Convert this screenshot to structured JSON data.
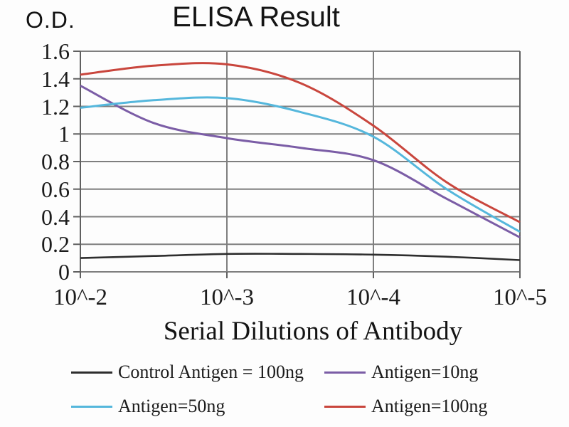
{
  "title": "ELISA Result",
  "y_axis_unit_label": "O.D.",
  "colors": {
    "grid": "#7f7f7f",
    "axis": "#606060",
    "text": "#1c1c1c",
    "background": "#fdfdfd"
  },
  "chart_data": {
    "type": "line",
    "title": "ELISA Result",
    "xlabel": "Serial Dilutions of Antibody",
    "ylabel": "O.D.",
    "x_tick_labels": [
      "10^-2",
      "10^-3",
      "10^-4",
      "10^-5"
    ],
    "x_tick_exponents": [
      -2,
      -3,
      -4,
      -5
    ],
    "y_tick_labels": [
      "0",
      "0.2",
      "0.4",
      "0.6",
      "0.8",
      "1",
      "1.2",
      "1.4",
      "1.6"
    ],
    "y_ticks": [
      0,
      0.2,
      0.4,
      0.6,
      0.8,
      1.0,
      1.2,
      1.4,
      1.6
    ],
    "ylim": [
      0,
      1.6
    ],
    "xlim_exponents": [
      -2,
      -5
    ],
    "grid": true,
    "legend_position": "bottom",
    "x_exponents": [
      -2,
      -2.5,
      -3,
      -3.5,
      -4,
      -4.5,
      -5
    ],
    "series": [
      {
        "name": "Control Antigen = 100ng",
        "color": "#2e2e2e",
        "values": [
          0.1,
          0.115,
          0.13,
          0.13,
          0.125,
          0.11,
          0.085
        ]
      },
      {
        "name": "Antigen=10ng",
        "color": "#7b5da6",
        "values": [
          1.35,
          1.08,
          0.97,
          0.9,
          0.81,
          0.53,
          0.25
        ]
      },
      {
        "name": "Antigen=50ng",
        "color": "#55b7dc",
        "values": [
          1.19,
          1.245,
          1.26,
          1.16,
          0.98,
          0.6,
          0.29
        ]
      },
      {
        "name": "Antigen=100ng",
        "color": "#c9463d",
        "values": [
          1.43,
          1.495,
          1.505,
          1.37,
          1.06,
          0.65,
          0.36
        ]
      }
    ]
  }
}
